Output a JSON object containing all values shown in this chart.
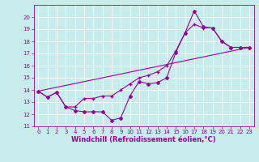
{
  "title": "",
  "xlabel": "Windchill (Refroidissement éolien,°C)",
  "bg_color": "#c8ecec",
  "line_color": "#990099",
  "grid_color": "#b0d8d8",
  "spine_color": "#888888",
  "xlim": [
    -0.5,
    23.5
  ],
  "ylim": [
    11,
    21
  ],
  "yticks": [
    11,
    12,
    13,
    14,
    15,
    16,
    17,
    18,
    19,
    20
  ],
  "xticks": [
    0,
    1,
    2,
    3,
    4,
    5,
    6,
    7,
    8,
    9,
    10,
    11,
    12,
    13,
    14,
    15,
    16,
    17,
    18,
    19,
    20,
    21,
    22,
    23
  ],
  "series1_x": [
    0,
    1,
    2,
    3,
    4,
    5,
    6,
    7,
    8,
    9,
    10,
    11,
    12,
    13,
    14,
    15,
    16,
    17,
    18,
    19,
    20,
    21,
    22,
    23
  ],
  "series1_y": [
    13.9,
    13.4,
    13.8,
    12.6,
    12.3,
    12.2,
    12.2,
    12.2,
    11.5,
    11.7,
    13.5,
    14.7,
    14.5,
    14.6,
    15.0,
    17.1,
    18.7,
    20.5,
    19.2,
    19.1,
    18.0,
    17.5,
    17.5,
    17.5
  ],
  "series2_x": [
    0,
    1,
    2,
    3,
    4,
    5,
    6,
    7,
    8,
    9,
    10,
    11,
    12,
    13,
    14,
    15,
    16,
    17,
    18,
    19,
    20,
    21,
    22,
    23
  ],
  "series2_y": [
    13.9,
    13.4,
    13.8,
    12.6,
    12.6,
    13.3,
    13.3,
    13.5,
    13.5,
    14.0,
    14.5,
    15.0,
    15.2,
    15.5,
    16.0,
    17.2,
    18.7,
    19.4,
    19.1,
    19.1,
    18.0,
    17.5,
    17.5,
    17.5
  ],
  "series3_x": [
    0,
    23
  ],
  "series3_y": [
    13.9,
    17.5
  ],
  "tick_fontsize": 5,
  "xlabel_fontsize": 6,
  "marker_size": 2.0,
  "line_width": 0.8
}
